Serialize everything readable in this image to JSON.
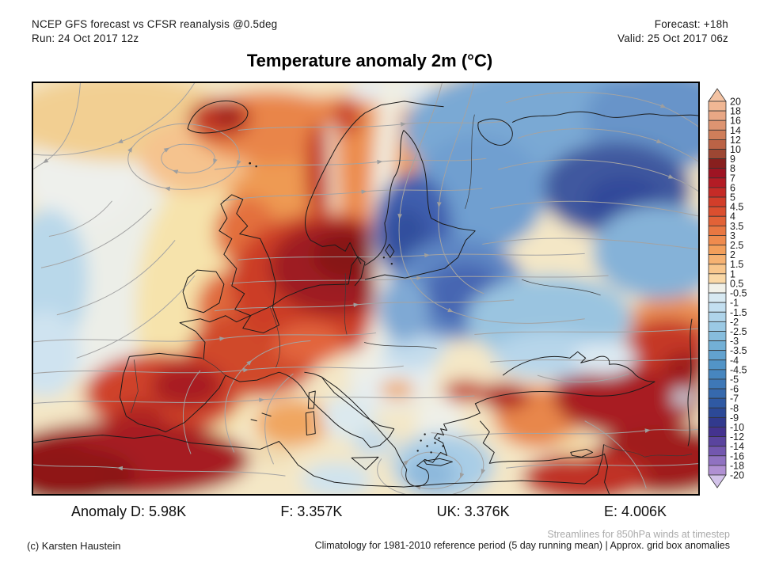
{
  "header": {
    "model_line": "NCEP GFS forecast vs CFSR reanalysis @0.5deg",
    "run_line": "Run: 24 Oct 2017 12z",
    "forecast_line": "Forecast: +18h",
    "valid_line": "Valid: 25 Oct 2017 06z"
  },
  "title": "Temperature anomaly 2m (°C)",
  "colorbar": {
    "unit": "°C",
    "labels": [
      "20",
      "18",
      "16",
      "14",
      "12",
      "10",
      "9",
      "8",
      "7",
      "6",
      "5",
      "4.5",
      "4",
      "3.5",
      "3",
      "2.5",
      "2",
      "1.5",
      "1",
      "0.5",
      "-0.5",
      "-1",
      "-1.5",
      "-2",
      "-2.5",
      "-3",
      "-3.5",
      "-4",
      "-4.5",
      "-5",
      "-6",
      "-7",
      "-8",
      "-9",
      "-10",
      "-12",
      "-14",
      "-16",
      "-18",
      "-20"
    ],
    "colors": [
      "#f0b794",
      "#e8a785",
      "#dd9471",
      "#cf7e5a",
      "#bb6346",
      "#9d4733",
      "#881f1e",
      "#9e1423",
      "#b31c25",
      "#c52b27",
      "#d23e2a",
      "#db4f2f",
      "#e26237",
      "#e97742",
      "#ef8b4e",
      "#f39f5b",
      "#f6b272",
      "#f8c68c",
      "#fad8a6",
      "#f1f1e9",
      "#d7e9f2",
      "#c3dff0",
      "#afd4ea",
      "#9bc9e4",
      "#87bddd",
      "#73b0d6",
      "#62a2cf",
      "#5294c7",
      "#4786bf",
      "#3e78b7",
      "#3669ad",
      "#2f59a3",
      "#2c4997",
      "#323a8e",
      "#44338f",
      "#5a449e",
      "#7357af",
      "#9072c1",
      "#b090d3"
    ],
    "arrow_top_color": "#f4c3a3",
    "arrow_bottom_color": "#d3c3ea"
  },
  "anomaly_stats": {
    "items": [
      "Anomaly D: 5.98K",
      "F: 3.357K",
      "UK: 3.376K",
      "E: 4.006K"
    ]
  },
  "footer": {
    "streamline_note": "Streamlines for 850hPa winds at timestep",
    "credit": "(c) Karsten Haustein",
    "climatology_note": "Climatology for 1981-2010 reference period (5 day running mean) | Approx. grid box anomalies"
  }
}
